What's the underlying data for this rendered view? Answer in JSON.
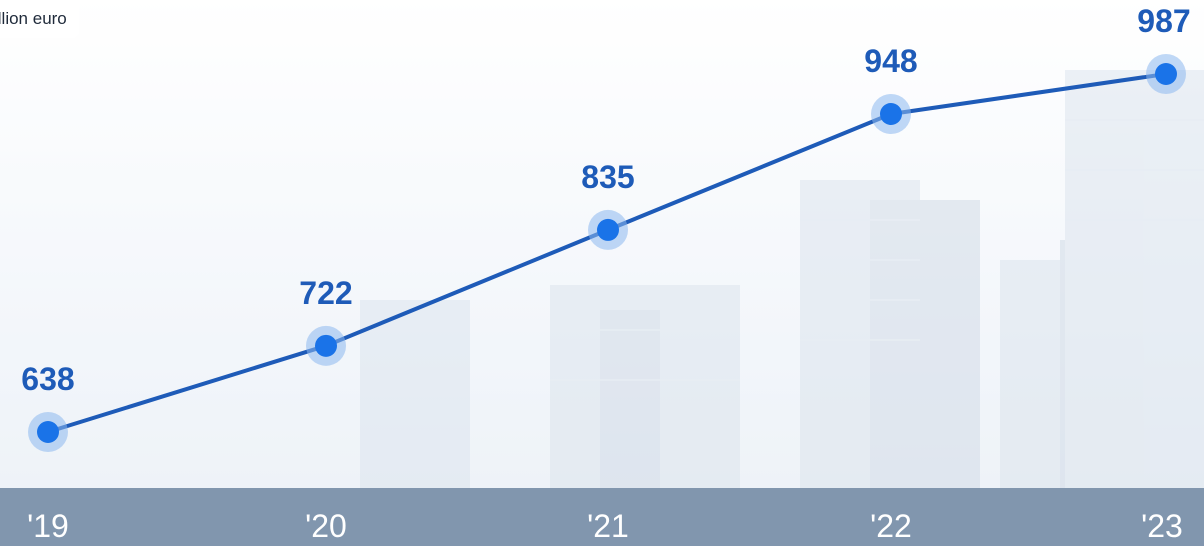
{
  "unit_label": "illion euro",
  "colors": {
    "line": "#1e5bb8",
    "point": "#1a73e8",
    "halo": "#8db8ee",
    "label": "#1e5bb8",
    "band": "#8196ae"
  },
  "chart_data": {
    "type": "line",
    "title": "",
    "ylabel": "illion euro",
    "xlabel": "",
    "categories": [
      "'19",
      "'20",
      "'21",
      "'22",
      "'23"
    ],
    "series": [
      {
        "values": [
          638,
          722,
          835,
          948,
          987
        ]
      }
    ],
    "data_labels": [
      "638",
      "722",
      "835",
      "948",
      "987"
    ],
    "grid": false,
    "legend": "none"
  }
}
